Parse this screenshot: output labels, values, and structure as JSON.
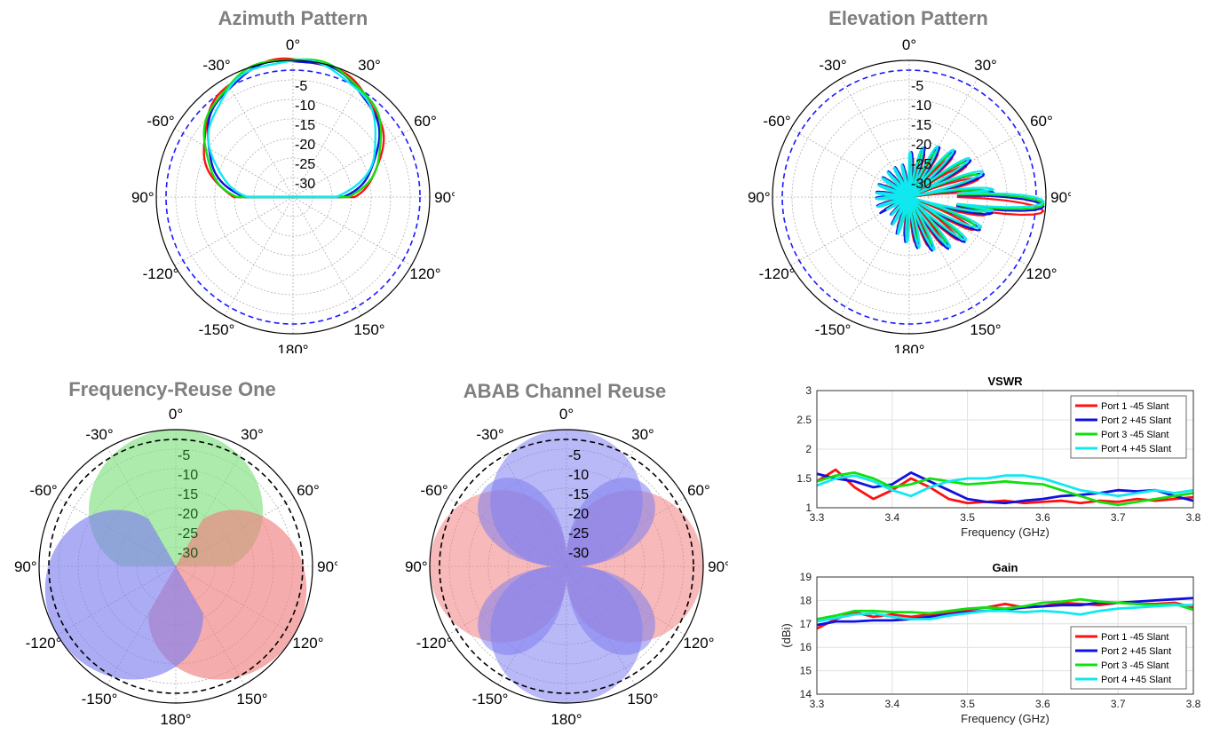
{
  "colors": {
    "port1": "#ff1010",
    "port2": "#1010e0",
    "port3": "#10e010",
    "port4": "#10e8f0",
    "ref_dashed": "#1a1aff",
    "title_gray": "#7f7f7f",
    "fill_red": "#f08080",
    "fill_blue": "#8080f0",
    "fill_green": "#80e080"
  },
  "chart_data": [
    {
      "id": "azimuth",
      "type": "polar",
      "title": "Azimuth Pattern",
      "angle_labels": [
        "0°",
        "30°",
        "60°",
        "90°",
        "120°",
        "150°",
        "180°",
        "-150°",
        "-120°",
        "-90°",
        "-60°",
        "-30°"
      ],
      "radial_labels": [
        "-5",
        "-10",
        "-15",
        "-20",
        "-25",
        "-30"
      ],
      "rlim": [
        -35,
        0
      ],
      "reference_dB": -2.5,
      "series": [
        {
          "color_key": "port1",
          "beamwidth": 70,
          "peak": 0.3
        },
        {
          "color_key": "port2",
          "beamwidth": 66,
          "peak": 0.1
        },
        {
          "color_key": "port3",
          "beamwidth": 68,
          "peak": 0.5
        },
        {
          "color_key": "port4",
          "beamwidth": 64,
          "peak": 0.0
        }
      ]
    },
    {
      "id": "elevation",
      "type": "polar",
      "title": "Elevation Pattern",
      "angle_labels": [
        "0°",
        "30°",
        "60°",
        "90°",
        "120°",
        "150°",
        "180°",
        "-150°",
        "-120°",
        "-90°",
        "-60°",
        "-30°"
      ],
      "radial_labels": [
        "-5",
        "-10",
        "-15",
        "-20",
        "-25",
        "-30"
      ],
      "rlim": [
        -35,
        0
      ],
      "reference_dB": -2.5,
      "main_lobe_deg": 94,
      "series": [
        {
          "color_key": "port1",
          "tilt": 96
        },
        {
          "color_key": "port2",
          "tilt": 94
        },
        {
          "color_key": "port3",
          "tilt": 93
        },
        {
          "color_key": "port4",
          "tilt": 92
        }
      ]
    },
    {
      "id": "freq_reuse_one",
      "type": "polar",
      "title": "Frequency-Reuse One",
      "angle_labels": [
        "0°",
        "30°",
        "60°",
        "90°",
        "120°",
        "150°",
        "180°",
        "-150°",
        "-120°",
        "-90°",
        "-60°",
        "-30°"
      ],
      "radial_labels": [
        "-5",
        "-10",
        "-15",
        "-20",
        "-25",
        "-30"
      ],
      "rlim": [
        -35,
        0
      ],
      "reference_dB": -2.5,
      "lobes": [
        {
          "color_key": "fill_green",
          "direction_deg": 0
        },
        {
          "color_key": "fill_red",
          "direction_deg": 120
        },
        {
          "color_key": "fill_blue",
          "direction_deg": -120
        }
      ]
    },
    {
      "id": "abab_reuse",
      "type": "polar",
      "title": "ABAB Channel Reuse",
      "angle_labels": [
        "0°",
        "30°",
        "60°",
        "90°",
        "120°",
        "150°",
        "180°",
        "-150°",
        "-120°",
        "-90°",
        "-60°",
        "-30°"
      ],
      "radial_labels": [
        "-5",
        "-10",
        "-15",
        "-20",
        "-25",
        "-30"
      ],
      "rlim": [
        -35,
        0
      ],
      "reference_dB": -2.5,
      "lobes": [
        {
          "color_key": "fill_red",
          "direction_deg": 90
        },
        {
          "color_key": "fill_red",
          "direction_deg": -90
        },
        {
          "color_key": "fill_blue",
          "direction_deg": 0
        },
        {
          "color_key": "fill_blue",
          "direction_deg": 180
        },
        {
          "color_key": "fill_blue",
          "direction_deg": 45
        },
        {
          "color_key": "fill_blue",
          "direction_deg": -45
        },
        {
          "color_key": "fill_blue",
          "direction_deg": 135
        },
        {
          "color_key": "fill_blue",
          "direction_deg": -135
        }
      ]
    },
    {
      "id": "vswr",
      "type": "line",
      "title": "VSWR",
      "xlabel": "Frequency (GHz)",
      "ylabel": "",
      "xlim": [
        3.3,
        3.8
      ],
      "ylim": [
        1,
        3
      ],
      "xticks": [
        "3.3",
        "3.4",
        "3.5",
        "3.6",
        "3.7",
        "3.8"
      ],
      "yticks": [
        "1",
        "1.5",
        "2",
        "2.5",
        "3"
      ],
      "xtick_values": [
        3.3,
        3.4,
        3.5,
        3.6,
        3.7,
        3.8
      ],
      "ytick_values": [
        1,
        1.5,
        2,
        2.5,
        3
      ],
      "legend_position": "top-right",
      "x": [
        3.3,
        3.325,
        3.35,
        3.375,
        3.4,
        3.425,
        3.45,
        3.475,
        3.5,
        3.525,
        3.55,
        3.575,
        3.6,
        3.625,
        3.65,
        3.675,
        3.7,
        3.725,
        3.75,
        3.775,
        3.8
      ],
      "series": [
        {
          "name": "Port 1 -45 Slant",
          "color_key": "port1",
          "values": [
            1.45,
            1.65,
            1.35,
            1.15,
            1.3,
            1.5,
            1.35,
            1.15,
            1.08,
            1.1,
            1.12,
            1.08,
            1.1,
            1.12,
            1.08,
            1.12,
            1.1,
            1.15,
            1.12,
            1.15,
            1.18
          ]
        },
        {
          "name": "Port 2 +45 Slant",
          "color_key": "port2",
          "values": [
            1.58,
            1.5,
            1.45,
            1.35,
            1.4,
            1.6,
            1.45,
            1.3,
            1.15,
            1.1,
            1.08,
            1.12,
            1.15,
            1.2,
            1.22,
            1.25,
            1.3,
            1.28,
            1.3,
            1.2,
            1.12
          ]
        },
        {
          "name": "Port 3 -45 Slant",
          "color_key": "port3",
          "values": [
            1.45,
            1.55,
            1.6,
            1.5,
            1.35,
            1.4,
            1.5,
            1.45,
            1.4,
            1.42,
            1.45,
            1.42,
            1.4,
            1.3,
            1.2,
            1.1,
            1.05,
            1.1,
            1.15,
            1.2,
            1.25
          ]
        },
        {
          "name": "Port 4 +45 Slant",
          "color_key": "port4",
          "values": [
            1.38,
            1.5,
            1.55,
            1.45,
            1.3,
            1.2,
            1.35,
            1.45,
            1.5,
            1.5,
            1.55,
            1.55,
            1.5,
            1.4,
            1.3,
            1.25,
            1.2,
            1.25,
            1.3,
            1.25,
            1.3
          ]
        }
      ]
    },
    {
      "id": "gain",
      "type": "line",
      "title": "Gain",
      "xlabel": "Frequency (GHz)",
      "ylabel": "(dBi)",
      "xlim": [
        3.3,
        3.8
      ],
      "ylim": [
        14,
        19
      ],
      "xticks": [
        "3.3",
        "3.4",
        "3.5",
        "3.6",
        "3.7",
        "3.8"
      ],
      "yticks": [
        "14",
        "15",
        "16",
        "17",
        "18",
        "19"
      ],
      "xtick_values": [
        3.3,
        3.4,
        3.5,
        3.6,
        3.7,
        3.8
      ],
      "ytick_values": [
        14,
        15,
        16,
        17,
        18,
        19
      ],
      "legend_position": "bottom-right",
      "x": [
        3.3,
        3.325,
        3.35,
        3.375,
        3.4,
        3.425,
        3.45,
        3.475,
        3.5,
        3.525,
        3.55,
        3.575,
        3.6,
        3.625,
        3.65,
        3.675,
        3.7,
        3.725,
        3.75,
        3.775,
        3.8
      ],
      "series": [
        {
          "name": "Port 1 -45 Slant",
          "color_key": "port1",
          "values": [
            16.8,
            17.2,
            17.5,
            17.3,
            17.4,
            17.3,
            17.4,
            17.5,
            17.6,
            17.7,
            17.85,
            17.7,
            17.75,
            17.9,
            17.85,
            17.8,
            17.9,
            17.85,
            17.85,
            17.9,
            17.7
          ]
        },
        {
          "name": "Port 2 +45 Slant",
          "color_key": "port2",
          "values": [
            16.95,
            17.1,
            17.1,
            17.15,
            17.15,
            17.2,
            17.3,
            17.4,
            17.5,
            17.55,
            17.6,
            17.7,
            17.75,
            17.8,
            17.8,
            17.9,
            17.9,
            17.95,
            18.0,
            18.05,
            18.1
          ]
        },
        {
          "name": "Port 3 -45 Slant",
          "color_key": "port3",
          "values": [
            17.2,
            17.35,
            17.55,
            17.55,
            17.5,
            17.5,
            17.45,
            17.55,
            17.65,
            17.7,
            17.65,
            17.75,
            17.9,
            17.95,
            18.05,
            17.95,
            17.9,
            17.85,
            17.8,
            17.85,
            17.6
          ]
        },
        {
          "name": "Port 4 +45 Slant",
          "color_key": "port4",
          "values": [
            17.1,
            17.25,
            17.4,
            17.45,
            17.3,
            17.2,
            17.2,
            17.35,
            17.45,
            17.55,
            17.55,
            17.5,
            17.55,
            17.5,
            17.4,
            17.55,
            17.65,
            17.7,
            17.75,
            17.8,
            17.8
          ]
        }
      ]
    }
  ]
}
